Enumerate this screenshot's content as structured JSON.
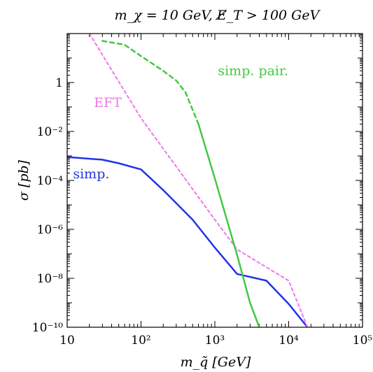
{
  "chart_data": {
    "type": "line",
    "title": "m_χ = 10 GeV,    E̸_T > 100 GeV",
    "xlabel": "m_q̃ [GeV]",
    "ylabel": "σ [pb]",
    "xscale": "log",
    "yscale": "log",
    "xlim": [
      10,
      100000
    ],
    "ylim": [
      1e-10,
      100
    ],
    "x_tick_labels": [
      "10",
      "10²",
      "10³",
      "10⁴",
      "10⁵"
    ],
    "y_tick_labels": [
      "10⁻¹⁰",
      "10⁻⁸",
      "10⁻⁶",
      "10⁻⁴",
      "10⁻²",
      "1"
    ],
    "series": [
      {
        "name": "simp.",
        "color": "#2233e8",
        "style": "solid",
        "x": [
          10,
          30,
          50,
          100,
          200,
          500,
          1000,
          2000,
          5000,
          10000,
          18000
        ],
        "y": [
          0.0009,
          0.0007,
          0.0005,
          0.00028,
          4e-05,
          2.5e-06,
          1.8e-07,
          1.5e-08,
          8e-09,
          9e-10,
          1e-10
        ]
      },
      {
        "name": "EFT",
        "color": "#ee77e8",
        "style": "dashed",
        "x": [
          20,
          100,
          1000,
          2000,
          10000,
          18000
        ],
        "y": [
          100,
          0.035,
          2.5e-06,
          1.5e-07,
          8e-09,
          1e-10
        ]
      },
      {
        "name": "simp. pair.",
        "color": "#44c844",
        "style": "solid",
        "x": [
          600,
          1000,
          2000,
          3000,
          4000
        ],
        "y": [
          0.02,
          0.00012,
          9e-08,
          1e-09,
          1e-10
        ]
      },
      {
        "name": "simp. pair.",
        "color": "#44c844",
        "style": "dashed",
        "x": [
          30,
          60,
          100,
          200,
          300,
          400,
          600
        ],
        "y": [
          50,
          35,
          12,
          3,
          1.2,
          0.4,
          0.02
        ]
      }
    ],
    "annotations": [
      {
        "text": "simp. pair.",
        "color": "#44c844"
      },
      {
        "text": "EFT",
        "color": "#ee77e8"
      },
      {
        "text": "simp.",
        "color": "#2233e8"
      }
    ]
  }
}
